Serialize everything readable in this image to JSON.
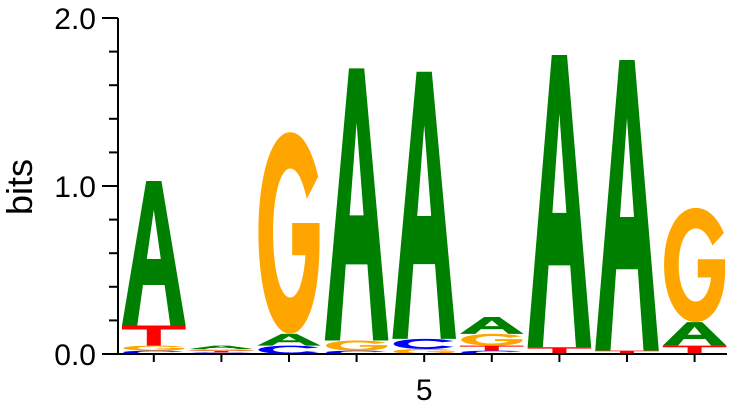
{
  "chart_data": {
    "type": "sequence-logo",
    "ylabel": "bits",
    "ylim": [
      0,
      2.0
    ],
    "y_tick_labels": [
      "0.0",
      "1.0",
      "2.0"
    ],
    "y_tick_values": [
      0,
      1.0,
      2.0
    ],
    "x_tick_labels": [
      "5"
    ],
    "x_tick_positions": [
      5
    ],
    "colors": {
      "A": "#008000",
      "C": "#0000ff",
      "G": "#ffa500",
      "T": "#ff0000"
    },
    "positions": [
      {
        "position": 1,
        "letters": [
          {
            "base": "C",
            "bits": 0.02
          },
          {
            "base": "G",
            "bits": 0.03
          },
          {
            "base": "T",
            "bits": 0.12
          },
          {
            "base": "A",
            "bits": 0.86
          }
        ]
      },
      {
        "position": 2,
        "letters": [
          {
            "base": "C",
            "bits": 0.01
          },
          {
            "base": "T",
            "bits": 0.01
          },
          {
            "base": "G",
            "bits": 0.01
          },
          {
            "base": "A",
            "bits": 0.02
          }
        ]
      },
      {
        "position": 3,
        "letters": [
          {
            "base": "C",
            "bits": 0.05
          },
          {
            "base": "A",
            "bits": 0.07
          },
          {
            "base": "G",
            "bits": 1.2
          }
        ]
      },
      {
        "position": 4,
        "letters": [
          {
            "base": "C",
            "bits": 0.02
          },
          {
            "base": "G",
            "bits": 0.06
          },
          {
            "base": "A",
            "bits": 1.62
          }
        ]
      },
      {
        "position": 5,
        "letters": [
          {
            "base": "G",
            "bits": 0.03
          },
          {
            "base": "C",
            "bits": 0.06
          },
          {
            "base": "A",
            "bits": 1.59
          }
        ]
      },
      {
        "position": 6,
        "letters": [
          {
            "base": "C",
            "bits": 0.02
          },
          {
            "base": "T",
            "bits": 0.03
          },
          {
            "base": "G",
            "bits": 0.07
          },
          {
            "base": "A",
            "bits": 0.1
          }
        ]
      },
      {
        "position": 7,
        "letters": [
          {
            "base": "T",
            "bits": 0.04
          },
          {
            "base": "A",
            "bits": 1.74
          }
        ]
      },
      {
        "position": 8,
        "letters": [
          {
            "base": "T",
            "bits": 0.02
          },
          {
            "base": "A",
            "bits": 1.73
          }
        ]
      },
      {
        "position": 9,
        "letters": [
          {
            "base": "T",
            "bits": 0.05
          },
          {
            "base": "A",
            "bits": 0.14
          },
          {
            "base": "G",
            "bits": 0.68
          }
        ]
      }
    ]
  }
}
